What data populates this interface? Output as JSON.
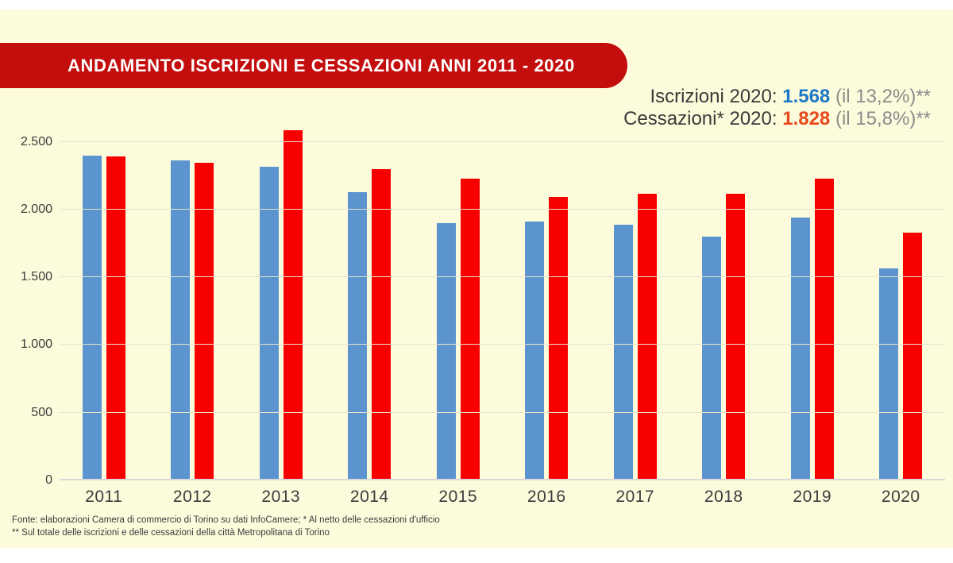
{
  "banner": {
    "title": "ANDAMENTO ISCRIZIONI E CESSAZIONI ANNI 2011 - 2020",
    "background_color": "#c40d0d"
  },
  "legend": {
    "iscrizioni": {
      "label": "Iscrizioni 2020: ",
      "value": "1.568",
      "suffix": " (il 13,2%)**",
      "value_color": "#1d78c8"
    },
    "cessazioni": {
      "label": "Cessazioni* 2020: ",
      "value": "1.828",
      "suffix": " (il 15,8%)**",
      "value_color": "#e8481a"
    }
  },
  "chart_data": {
    "type": "bar",
    "title": "ANDAMENTO ISCRIZIONI E CESSAZIONI ANNI 2011 - 2020",
    "categories": [
      "2011",
      "2012",
      "2013",
      "2014",
      "2015",
      "2016",
      "2017",
      "2018",
      "2019",
      "2020"
    ],
    "series": [
      {
        "name": "Iscrizioni",
        "color": "#5b94ce",
        "values": [
          2400,
          2365,
          2315,
          2125,
          1900,
          1910,
          1890,
          1800,
          1940,
          1568
        ]
      },
      {
        "name": "Cessazioni",
        "color": "#f80000",
        "values": [
          2390,
          2345,
          2585,
          2295,
          2230,
          2090,
          2115,
          2115,
          2230,
          1828
        ]
      }
    ],
    "ylim": [
      0,
      2600
    ],
    "ytick_values": [
      0,
      500,
      1000,
      1500,
      2000,
      2500
    ],
    "ytick_labels": [
      "0",
      "500",
      "1.000",
      "1.500",
      "2.000",
      "2.500"
    ],
    "grid": true,
    "legend_position": "top-right",
    "xlabel": "",
    "ylabel": ""
  },
  "footer": {
    "line1": "Fonte: elaborazioni Camera di commercio di Torino su dati InfoCamere; * Al netto delle cessazioni d'ufficio",
    "line2": "** Sul totale delle iscrizioni e delle cessazioni della città Metropolitana di Torino"
  }
}
